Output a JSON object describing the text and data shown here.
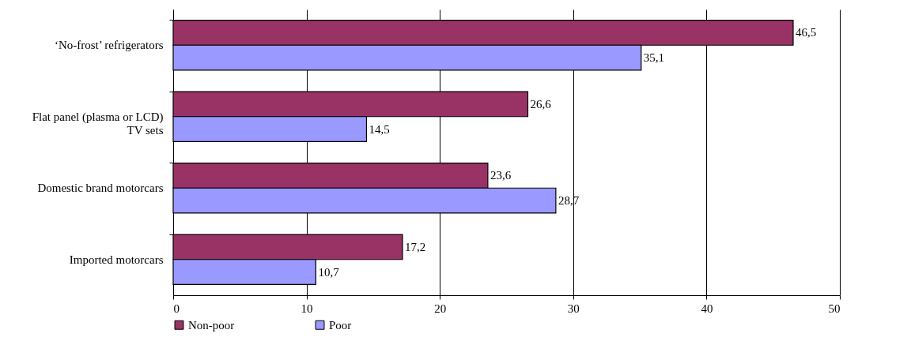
{
  "chart_data": {
    "type": "bar",
    "orientation": "horizontal",
    "categories": [
      "‘No-frost’ refrigerators",
      "Flat panel (plasma or LCD)\nTV sets",
      "Domestic brand motorcars",
      "Imported motorcars"
    ],
    "series": [
      {
        "name": "Non-poor",
        "color": "#993366",
        "values": [
          46.5,
          26.6,
          23.6,
          17.2
        ],
        "value_labels": [
          "46,5",
          "26,6",
          "23,6",
          "17,2"
        ]
      },
      {
        "name": "Poor",
        "color": "#9999ff",
        "values": [
          35.1,
          14.5,
          28.7,
          10.7
        ],
        "value_labels": [
          "35,1",
          "14,5",
          "28,7",
          "10,7"
        ]
      }
    ],
    "xlim": [
      0,
      50
    ],
    "xticks": [
      0,
      10,
      20,
      30,
      40,
      50
    ],
    "grid": "x",
    "legend": "bottom"
  }
}
